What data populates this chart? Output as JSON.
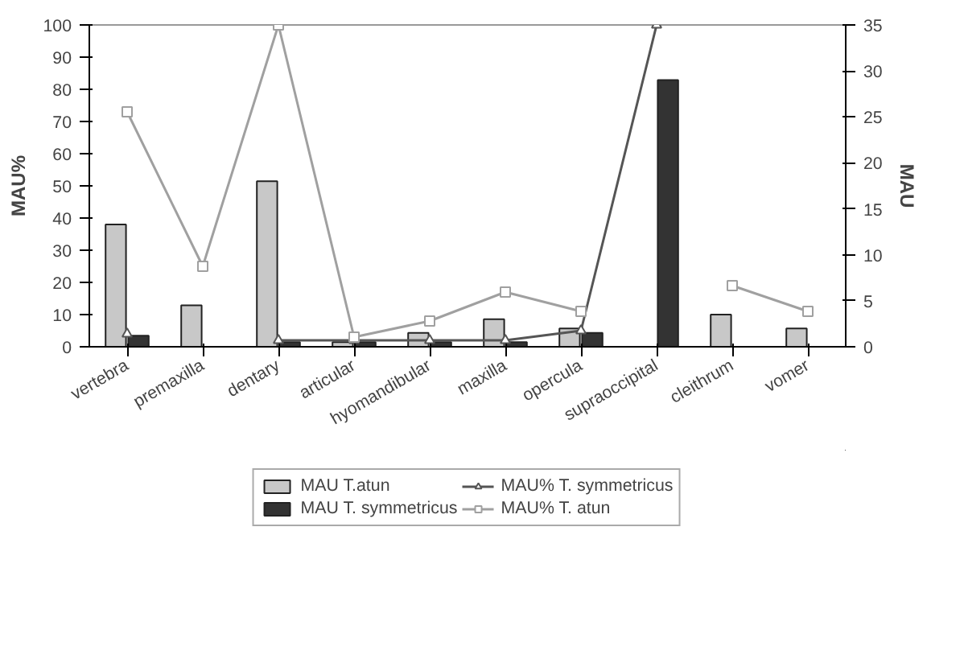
{
  "chart_data": {
    "type": "bar",
    "categories": [
      "vertebra",
      "premaxilla",
      "dentary",
      "articular",
      "hyomandibular",
      "maxilla",
      "opercula",
      "supraoccipital",
      "cleithrum",
      "vomer"
    ],
    "ylabel": "MAU%",
    "y2label": "MAU",
    "ylim": [
      0,
      100
    ],
    "yticks": [
      0,
      10,
      20,
      30,
      40,
      50,
      60,
      70,
      80,
      90,
      100
    ],
    "y2lim": [
      0,
      35
    ],
    "y2ticks": [
      0,
      5,
      10,
      15,
      20,
      25,
      30,
      35
    ],
    "series": [
      {
        "name": "MAU T.atun",
        "axis": "y2",
        "color": "#c8c8c8",
        "values": [
          13.3,
          4.5,
          18,
          0.5,
          1.5,
          3,
          2,
          null,
          3.5,
          2
        ]
      },
      {
        "name": "MAU T. symmetricus",
        "axis": "y2",
        "color": "#333333",
        "values": [
          1.2,
          null,
          0.5,
          0.5,
          0.5,
          0.5,
          1.5,
          29,
          null,
          null
        ]
      },
      {
        "name": "MAU% T. symmetricus",
        "type": "line",
        "color": "#555555",
        "marker": "triangle",
        "values": [
          4,
          null,
          2,
          2,
          2,
          2,
          5,
          100,
          null,
          null
        ]
      },
      {
        "name": "MAU% T. atun",
        "type": "line",
        "color": "#a0a0a0",
        "marker": "square",
        "values": [
          73,
          25,
          100,
          3,
          8,
          17,
          11,
          null,
          19,
          11
        ]
      }
    ],
    "legend": "bottom",
    "grid": false
  }
}
